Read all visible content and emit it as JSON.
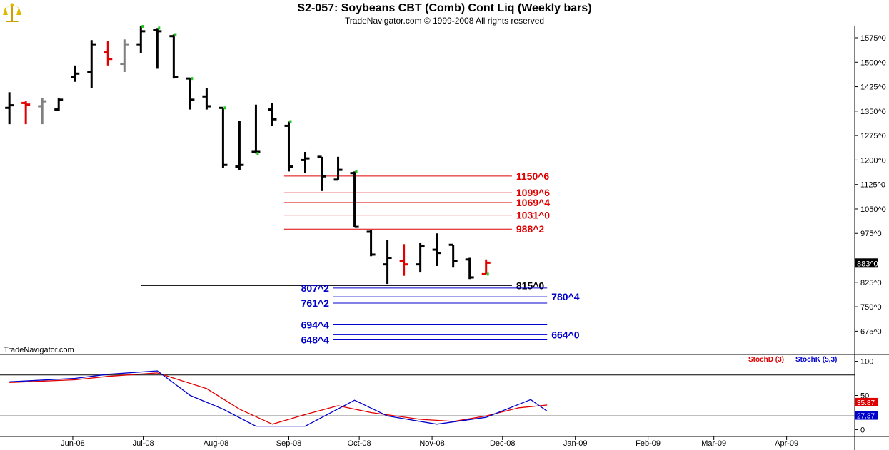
{
  "header": {
    "title": "S2-057:  Soybeans CBT (Comb) Cont Liq  (Weekly bars)",
    "subtitle": "TradeNavigator.com © 1999-2008 All rights reserved",
    "watermark": "TradeNavigator.com"
  },
  "colors": {
    "up_bar": "#000000",
    "down_bar": "#e00000",
    "neutral_bar": "#808080",
    "resistance": "#e00000",
    "support": "#0000cc",
    "signal_dot": "#22cc22",
    "stoch_d": "#e00000",
    "stoch_k": "#0000cc"
  },
  "chart_data": [
    {
      "type": "ohlc",
      "x_unit": "week",
      "xlim": [
        "2008-05-01",
        "2009-04-30"
      ],
      "ylim": [
        608,
        1610
      ],
      "x_ticks": [
        "Jun-08",
        "Jul-08",
        "Aug-08",
        "Sep-08",
        "Oct-08",
        "Nov-08",
        "Dec-08",
        "Jan-09",
        "Feb-09",
        "Mar-09",
        "Apr-09"
      ],
      "x_tick_dates": [
        "2008-06-01",
        "2008-07-01",
        "2008-08-01",
        "2008-09-01",
        "2008-10-01",
        "2008-11-01",
        "2008-12-01",
        "2009-01-01",
        "2009-02-01",
        "2009-03-01",
        "2009-04-01"
      ],
      "y_ticks": [
        1575,
        1500,
        1425,
        1350,
        1275,
        1200,
        1125,
        1050,
        975,
        825,
        750,
        675
      ],
      "y_tick_labels": [
        "1575^0",
        "1500^0",
        "1425^0",
        "1350^0",
        "1275^0",
        "1200^0",
        "1125^0",
        "1050^0",
        "975^0",
        "825^0",
        "750^0",
        "675^0"
      ],
      "last_price": 883,
      "last_price_label": "883^0",
      "bars": [
        {
          "date": "2008-05-05",
          "o": 1360,
          "h": 1408,
          "l": 1310,
          "c": 1368,
          "color": "black"
        },
        {
          "date": "2008-05-12",
          "o": 1375,
          "h": 1380,
          "l": 1310,
          "c": 1370,
          "color": "red"
        },
        {
          "date": "2008-05-19",
          "o": 1365,
          "h": 1390,
          "l": 1310,
          "c": 1380,
          "color": "gray"
        },
        {
          "date": "2008-05-26",
          "o": 1355,
          "h": 1390,
          "l": 1350,
          "c": 1385,
          "color": "black"
        },
        {
          "date": "2008-06-02",
          "o": 1455,
          "h": 1490,
          "l": 1440,
          "c": 1465,
          "color": "black"
        },
        {
          "date": "2008-06-09",
          "o": 1470,
          "h": 1568,
          "l": 1420,
          "c": 1555,
          "color": "black"
        },
        {
          "date": "2008-06-16",
          "o": 1530,
          "h": 1565,
          "l": 1490,
          "c": 1510,
          "color": "red"
        },
        {
          "date": "2008-06-23",
          "o": 1495,
          "h": 1570,
          "l": 1470,
          "c": 1555,
          "color": "gray"
        },
        {
          "date": "2008-06-30",
          "o": 1555,
          "h": 1610,
          "l": 1528,
          "c": 1595,
          "color": "black",
          "dot": "high"
        },
        {
          "date": "2008-07-07",
          "o": 1600,
          "h": 1605,
          "l": 1480,
          "c": 1595,
          "color": "black",
          "dot": "high"
        },
        {
          "date": "2008-07-14",
          "o": 1580,
          "h": 1585,
          "l": 1450,
          "c": 1455,
          "color": "black",
          "dot": "high"
        },
        {
          "date": "2008-07-21",
          "o": 1450,
          "h": 1450,
          "l": 1355,
          "c": 1385,
          "color": "black",
          "dot": "high"
        },
        {
          "date": "2008-07-28",
          "o": 1395,
          "h": 1420,
          "l": 1355,
          "c": 1365,
          "color": "black"
        },
        {
          "date": "2008-08-04",
          "o": 1360,
          "h": 1360,
          "l": 1175,
          "c": 1185,
          "color": "black",
          "dot": "high"
        },
        {
          "date": "2008-08-11",
          "o": 1180,
          "h": 1320,
          "l": 1170,
          "c": 1185,
          "color": "black"
        },
        {
          "date": "2008-08-18",
          "o": 1225,
          "h": 1370,
          "l": 1220,
          "c": 1225,
          "color": "black",
          "dot": "low"
        },
        {
          "date": "2008-08-25",
          "o": 1355,
          "h": 1375,
          "l": 1305,
          "c": 1325,
          "color": "black"
        },
        {
          "date": "2008-09-01",
          "o": 1305,
          "h": 1318,
          "l": 1165,
          "c": 1180,
          "color": "black",
          "dot": "high"
        },
        {
          "date": "2008-09-08",
          "o": 1200,
          "h": 1225,
          "l": 1160,
          "c": 1205,
          "color": "black"
        },
        {
          "date": "2008-09-15",
          "o": 1210,
          "h": 1210,
          "l": 1105,
          "c": 1150,
          "color": "black"
        },
        {
          "date": "2008-09-22",
          "o": 1140,
          "h": 1210,
          "l": 1140,
          "c": 1170,
          "color": "black"
        },
        {
          "date": "2008-09-29",
          "o": 1160,
          "h": 1165,
          "l": 995,
          "c": 995,
          "color": "black",
          "dot": "high"
        },
        {
          "date": "2008-10-06",
          "o": 980,
          "h": 985,
          "l": 905,
          "c": 910,
          "color": "black"
        },
        {
          "date": "2008-10-13",
          "o": 880,
          "h": 955,
          "l": 820,
          "c": 900,
          "color": "black"
        },
        {
          "date": "2008-10-20",
          "o": 890,
          "h": 942,
          "l": 845,
          "c": 880,
          "color": "red"
        },
        {
          "date": "2008-10-27",
          "o": 880,
          "h": 945,
          "l": 855,
          "c": 935,
          "color": "black"
        },
        {
          "date": "2008-11-03",
          "o": 925,
          "h": 975,
          "l": 875,
          "c": 915,
          "color": "black"
        },
        {
          "date": "2008-11-10",
          "o": 940,
          "h": 940,
          "l": 870,
          "c": 890,
          "color": "black"
        },
        {
          "date": "2008-11-17",
          "o": 895,
          "h": 900,
          "l": 835,
          "c": 840,
          "color": "black"
        },
        {
          "date": "2008-11-24",
          "o": 850,
          "h": 895,
          "l": 850,
          "c": 885,
          "color": "red",
          "dot": "low"
        }
      ],
      "levels": [
        {
          "value": 1150.75,
          "label": "1150^6",
          "color": "red",
          "x_start": "2008-08-30",
          "x_end": "2008-12-05",
          "label_side": "right"
        },
        {
          "value": 1099.75,
          "label": "1099^6",
          "color": "red",
          "x_start": "2008-08-30",
          "x_end": "2008-12-05",
          "label_side": "right"
        },
        {
          "value": 1069.5,
          "label": "1069^4",
          "color": "red",
          "x_start": "2008-08-30",
          "x_end": "2008-12-05",
          "label_side": "right"
        },
        {
          "value": 1031,
          "label": "1031^0",
          "color": "red",
          "x_start": "2008-08-30",
          "x_end": "2008-12-05",
          "label_side": "right"
        },
        {
          "value": 988.25,
          "label": "988^2",
          "color": "red",
          "x_start": "2008-08-30",
          "x_end": "2008-12-05",
          "label_side": "right"
        },
        {
          "value": 815,
          "label": "815^0",
          "color": "black",
          "x_start": "2008-06-30",
          "x_end": "2008-12-05",
          "label_side": "right"
        },
        {
          "value": 807.25,
          "label": "807^2",
          "color": "blue",
          "x_start": "2008-09-20",
          "x_end": "2008-12-20",
          "label_side": "left"
        },
        {
          "value": 780.5,
          "label": "780^4",
          "color": "blue",
          "x_start": "2008-09-20",
          "x_end": "2008-12-20",
          "label_side": "right"
        },
        {
          "value": 761.25,
          "label": "761^2",
          "color": "blue",
          "x_start": "2008-09-20",
          "x_end": "2008-12-20",
          "label_side": "left"
        },
        {
          "value": 694.5,
          "label": "694^4",
          "color": "blue",
          "x_start": "2008-09-20",
          "x_end": "2008-12-20",
          "label_side": "left"
        },
        {
          "value": 664,
          "label": "664^0",
          "color": "blue",
          "x_start": "2008-09-20",
          "x_end": "2008-12-20",
          "label_side": "right"
        },
        {
          "value": 648.5,
          "label": "648^4",
          "color": "blue",
          "x_start": "2008-09-20",
          "x_end": "2008-12-20",
          "label_side": "left"
        }
      ]
    },
    {
      "type": "line",
      "ylim": [
        -10,
        110
      ],
      "y_ticks": [
        100,
        50,
        0
      ],
      "y_tick_labels": [
        "100",
        "50",
        "0"
      ],
      "reference_lines": [
        80,
        20
      ],
      "legend_placement": "top-right",
      "series": [
        {
          "name": "StochD (3)",
          "color": "red",
          "last_label": "35.87",
          "points": [
            [
              "2008-05-05",
              69
            ],
            [
              "2008-06-02",
              73
            ],
            [
              "2008-06-16",
              78
            ],
            [
              "2008-07-07",
              83
            ],
            [
              "2008-07-28",
              60
            ],
            [
              "2008-08-11",
              30
            ],
            [
              "2008-08-25",
              8
            ],
            [
              "2008-09-08",
              22
            ],
            [
              "2008-09-22",
              35
            ],
            [
              "2008-10-06",
              25
            ],
            [
              "2008-10-27",
              15
            ],
            [
              "2008-11-10",
              12
            ],
            [
              "2008-11-24",
              20
            ],
            [
              "2008-12-08",
              32
            ],
            [
              "2008-12-20",
              36
            ]
          ]
        },
        {
          "name": "StochK (5,3)",
          "color": "blue",
          "last_label": "27.37",
          "points": [
            [
              "2008-05-05",
              70
            ],
            [
              "2008-06-02",
              75
            ],
            [
              "2008-06-16",
              81
            ],
            [
              "2008-07-07",
              86
            ],
            [
              "2008-07-21",
              50
            ],
            [
              "2008-08-04",
              30
            ],
            [
              "2008-08-18",
              5
            ],
            [
              "2008-09-08",
              5
            ],
            [
              "2008-09-29",
              43
            ],
            [
              "2008-10-13",
              20
            ],
            [
              "2008-11-03",
              8
            ],
            [
              "2008-11-24",
              18
            ],
            [
              "2008-12-13",
              44
            ],
            [
              "2008-12-20",
              27
            ]
          ]
        }
      ]
    }
  ]
}
